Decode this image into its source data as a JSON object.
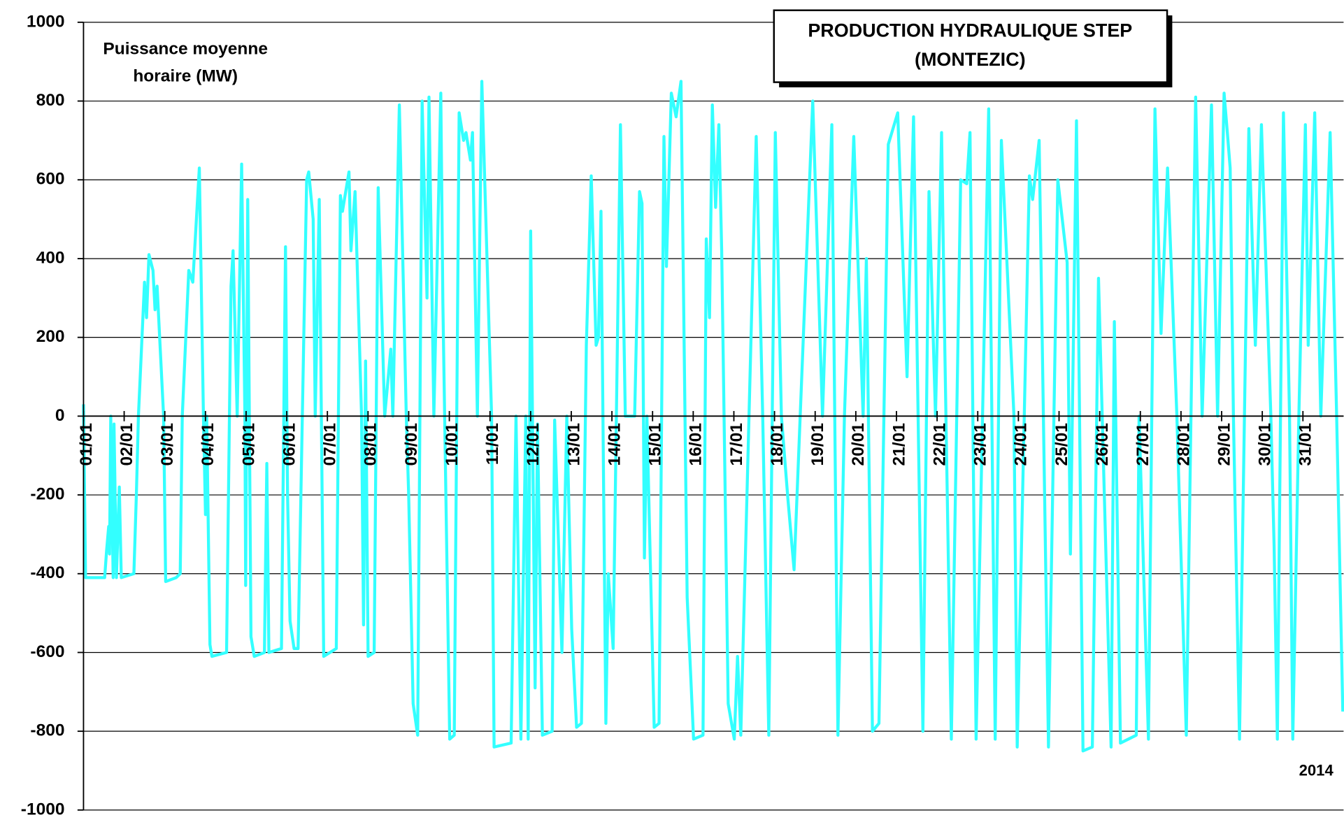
{
  "chart_data": {
    "type": "line",
    "title": [
      "PRODUCTION HYDRAULIQUE STEP",
      "(MONTEZIC)"
    ],
    "ylabel": [
      "Puissance moyenne",
      "horaire (MW)"
    ],
    "annotation": "2014",
    "color": "#33ffff",
    "grid": true,
    "xlim": [
      1,
      32
    ],
    "ylim": [
      -1000,
      1000
    ],
    "yticks": [
      -1000,
      -800,
      -600,
      -400,
      -200,
      0,
      200,
      400,
      600,
      800,
      1000
    ],
    "xticks": [
      {
        "value": 1,
        "label": "01/01"
      },
      {
        "value": 2,
        "label": "02/01"
      },
      {
        "value": 3,
        "label": "03/01"
      },
      {
        "value": 4,
        "label": "04/01"
      },
      {
        "value": 5,
        "label": "05/01"
      },
      {
        "value": 6,
        "label": "06/01"
      },
      {
        "value": 7,
        "label": "07/01"
      },
      {
        "value": 8,
        "label": "08/01"
      },
      {
        "value": 9,
        "label": "09/01"
      },
      {
        "value": 10,
        "label": "10/01"
      },
      {
        "value": 11,
        "label": "11/01"
      },
      {
        "value": 12,
        "label": "12/01"
      },
      {
        "value": 13,
        "label": "13/01"
      },
      {
        "value": 14,
        "label": "14/01"
      },
      {
        "value": 15,
        "label": "15/01"
      },
      {
        "value": 16,
        "label": "16/01"
      },
      {
        "value": 17,
        "label": "17/01"
      },
      {
        "value": 18,
        "label": "18/01"
      },
      {
        "value": 19,
        "label": "19/01"
      },
      {
        "value": 20,
        "label": "20/01"
      },
      {
        "value": 21,
        "label": "21/01"
      },
      {
        "value": 22,
        "label": "22/01"
      },
      {
        "value": 23,
        "label": "23/01"
      },
      {
        "value": 24,
        "label": "24/01"
      },
      {
        "value": 25,
        "label": "25/01"
      },
      {
        "value": 26,
        "label": "26/01"
      },
      {
        "value": 27,
        "label": "27/01"
      },
      {
        "value": 28,
        "label": "28/01"
      },
      {
        "value": 29,
        "label": "29/01"
      },
      {
        "value": 30,
        "label": "30/01"
      },
      {
        "value": 31,
        "label": "31/01"
      }
    ],
    "x": [
      1.0,
      1.05,
      1.52,
      1.57,
      1.62,
      1.64,
      1.67,
      1.73,
      1.75,
      1.81,
      1.88,
      1.93,
      2.24,
      2.3,
      2.35,
      2.5,
      2.55,
      2.61,
      2.71,
      2.76,
      2.81,
      2.97,
      3.02,
      3.28,
      3.38,
      3.43,
      3.59,
      3.69,
      3.85,
      3.95,
      4.0,
      4.03,
      4.11,
      4.16,
      4.52,
      4.63,
      4.68,
      4.78,
      4.89,
      4.97,
      4.99,
      5.04,
      5.12,
      5.2,
      5.45,
      5.51,
      5.56,
      5.87,
      5.97,
      6.02,
      6.08,
      6.18,
      6.28,
      6.49,
      6.54,
      6.65,
      6.7,
      6.8,
      6.91,
      7.22,
      7.32,
      7.37,
      7.53,
      7.58,
      7.68,
      7.84,
      7.89,
      7.94,
      8.0,
      8.15,
      8.25,
      8.41,
      8.56,
      8.61,
      8.77,
      8.94,
      9.0,
      9.11,
      9.22,
      9.33,
      9.45,
      9.5,
      9.62,
      9.79,
      9.84,
      10.01,
      10.12,
      10.24,
      10.35,
      10.41,
      10.52,
      10.57,
      10.69,
      10.8,
      11.04,
      11.1,
      11.52,
      11.64,
      11.76,
      11.88,
      11.94,
      12.0,
      12.11,
      12.17,
      12.29,
      12.53,
      12.59,
      12.77,
      12.89,
      13.01,
      13.13,
      13.25,
      13.37,
      13.49,
      13.61,
      13.67,
      13.73,
      13.85,
      13.91,
      14.03,
      14.21,
      14.33,
      14.56,
      14.68,
      14.74,
      14.8,
      14.86,
      15.04,
      15.16,
      15.28,
      15.34,
      15.46,
      15.58,
      15.7,
      15.85,
      16.01,
      16.24,
      16.32,
      16.4,
      16.47,
      16.55,
      16.63,
      16.7,
      16.86,
      17.01,
      17.09,
      17.17,
      17.55,
      17.71,
      17.86,
      18.02,
      18.17,
      18.33,
      18.48,
      18.94,
      19.18,
      19.41,
      19.56,
      19.72,
      19.95,
      20.18,
      20.26,
      20.41,
      20.57,
      20.8,
      21.03,
      21.26,
      21.42,
      21.65,
      21.8,
      21.96,
      22.11,
      22.19,
      22.35,
      22.58,
      22.73,
      22.81,
      22.96,
      23.27,
      23.43,
      23.58,
      23.89,
      23.97,
      24.27,
      24.35,
      24.51,
      24.74,
      24.97,
      25.2,
      25.28,
      25.43,
      25.59,
      25.82,
      25.97,
      26.28,
      26.36,
      26.51,
      26.9,
      26.97,
      27.2,
      27.36,
      27.51,
      27.67,
      27.9,
      28.13,
      28.36,
      28.52,
      28.75,
      28.9,
      29.06,
      29.14,
      29.21,
      29.29,
      29.44,
      29.67,
      29.83,
      29.98,
      30.21,
      30.29,
      30.37,
      30.52,
      30.67,
      30.75,
      30.9,
      31.06,
      31.13,
      31.29,
      31.44,
      31.67,
      31.83,
      31.98
    ],
    "values": [
      30,
      -410,
      -410,
      -340,
      -280,
      -350,
      0,
      -410,
      -20,
      -410,
      -180,
      -410,
      -400,
      -200,
      0,
      340,
      250,
      410,
      370,
      270,
      330,
      0,
      -420,
      -410,
      -400,
      0,
      370,
      340,
      630,
      0,
      -250,
      0,
      -580,
      -610,
      -600,
      330,
      420,
      0,
      640,
      0,
      -430,
      550,
      -560,
      -610,
      -600,
      -120,
      -600,
      -590,
      430,
      -200,
      -520,
      -590,
      -590,
      600,
      620,
      500,
      0,
      550,
      -610,
      -590,
      560,
      520,
      620,
      420,
      570,
      0,
      -530,
      140,
      -610,
      -600,
      580,
      0,
      170,
      0,
      790,
      0,
      -200,
      -730,
      -810,
      800,
      300,
      810,
      0,
      820,
      290,
      -820,
      -810,
      770,
      700,
      720,
      650,
      720,
      0,
      850,
      0,
      -840,
      -830,
      0,
      -820,
      0,
      -820,
      470,
      -690,
      -20,
      -810,
      -800,
      -10,
      -600,
      0,
      -540,
      -790,
      -780,
      180,
      610,
      180,
      200,
      520,
      -780,
      -400,
      -590,
      740,
      0,
      0,
      570,
      540,
      -360,
      0,
      -790,
      -780,
      710,
      380,
      820,
      760,
      850,
      -460,
      -820,
      -810,
      450,
      250,
      790,
      530,
      740,
      420,
      -730,
      -820,
      -610,
      -810,
      710,
      0,
      -810,
      720,
      0,
      -210,
      -390,
      800,
      0,
      740,
      -810,
      0,
      710,
      0,
      400,
      -800,
      -780,
      690,
      770,
      100,
      760,
      -800,
      570,
      0,
      720,
      170,
      -820,
      600,
      590,
      720,
      -820,
      780,
      -820,
      700,
      0,
      -840,
      610,
      550,
      700,
      -840,
      600,
      390,
      -350,
      750,
      -850,
      -840,
      350,
      -840,
      240,
      -830,
      -810,
      0,
      -820,
      780,
      210,
      630,
      0,
      -810,
      810,
      0,
      790,
      0,
      820,
      720,
      630,
      0,
      -820,
      730,
      180,
      740,
      0,
      -330,
      -820,
      770,
      0,
      -820,
      0,
      740,
      180,
      770,
      0,
      720,
      0,
      -750
    ]
  }
}
